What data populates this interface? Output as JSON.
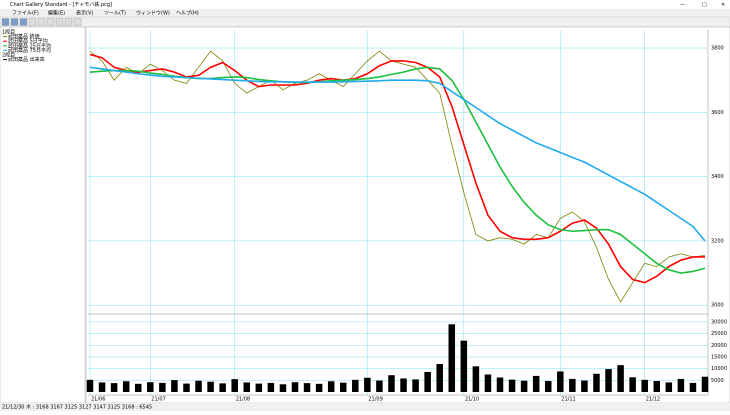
{
  "window": {
    "title": "Chart Gallery Standard - [チャモバ鉄.pcg]",
    "menu": [
      "ファイル(F)",
      "編集(E)",
      "表示(V)",
      "ツール(T)",
      "ウィンドウ(W)",
      "ヘルプ(H)"
    ],
    "legend": [
      "1段目",
      "武田薬品 終値",
      "武田薬品 5日平均",
      "武田薬品 25日平均",
      "武田薬品 75日平均",
      "2段目",
      "武田薬品 出来高"
    ],
    "status": "21/12/30 木 : 3168 3167 3125 3127 3147 3125 3168 : 6545"
  },
  "chart_data": {
    "type": "line",
    "xlim": [
      0,
      51
    ],
    "xticks": [
      {
        "value": 0,
        "label": "21/06"
      },
      {
        "value": 5,
        "label": "21/07"
      },
      {
        "value": 12,
        "label": "21/08"
      },
      {
        "value": 23,
        "label": "21/09"
      },
      {
        "value": 31,
        "label": "21/10"
      },
      {
        "value": 39,
        "label": "21/11"
      },
      {
        "value": 46,
        "label": "21/12"
      }
    ],
    "ylim": [
      2985,
      3825
    ],
    "yticks": [
      3000,
      3200,
      3400,
      3600,
      3800
    ],
    "grid": true,
    "series": [
      {
        "name": "武田薬品 終値",
        "color": "#808000",
        "values": [
          3790,
          3760,
          3700,
          3740,
          3720,
          3750,
          3730,
          3700,
          3690,
          3740,
          3790,
          3760,
          3690,
          3660,
          3680,
          3700,
          3670,
          3690,
          3700,
          3720,
          3700,
          3680,
          3720,
          3760,
          3790,
          3760,
          3750,
          3740,
          3700,
          3660,
          3500,
          3350,
          3220,
          3200,
          3210,
          3205,
          3190,
          3220,
          3210,
          3270,
          3290,
          3260,
          3180,
          3080,
          3010,
          3070,
          3130,
          3120,
          3150,
          3160,
          3150,
          3155
        ]
      },
      {
        "name": "武田薬品 5日平均",
        "color": "#ff0000",
        "values": [
          3780,
          3770,
          3740,
          3730,
          3725,
          3730,
          3735,
          3725,
          3710,
          3715,
          3740,
          3755,
          3730,
          3700,
          3680,
          3685,
          3685,
          3685,
          3690,
          3700,
          3705,
          3700,
          3705,
          3720,
          3745,
          3760,
          3760,
          3755,
          3740,
          3710,
          3620,
          3500,
          3380,
          3280,
          3230,
          3210,
          3205,
          3205,
          3210,
          3230,
          3255,
          3265,
          3240,
          3190,
          3120,
          3080,
          3070,
          3090,
          3120,
          3140,
          3150,
          3150
        ]
      },
      {
        "name": "武田薬品 25日平均",
        "color": "#1fbf3f",
        "values": [
          3725,
          3728,
          3730,
          3730,
          3728,
          3722,
          3718,
          3712,
          3708,
          3705,
          3705,
          3708,
          3710,
          3708,
          3702,
          3698,
          3695,
          3693,
          3693,
          3695,
          3698,
          3700,
          3702,
          3705,
          3710,
          3718,
          3725,
          3735,
          3740,
          3735,
          3700,
          3640,
          3570,
          3500,
          3430,
          3370,
          3320,
          3280,
          3250,
          3235,
          3230,
          3232,
          3235,
          3235,
          3220,
          3190,
          3160,
          3130,
          3110,
          3100,
          3105,
          3115
        ]
      },
      {
        "name": "武田薬品 75日平均",
        "color": "#22aaee",
        "values": [
          3740,
          3735,
          3730,
          3725,
          3720,
          3716,
          3712,
          3710,
          3708,
          3706,
          3704,
          3702,
          3700,
          3698,
          3696,
          3695,
          3695,
          3694,
          3694,
          3694,
          3694,
          3695,
          3696,
          3697,
          3698,
          3700,
          3700,
          3700,
          3698,
          3690,
          3665,
          3640,
          3615,
          3590,
          3565,
          3545,
          3525,
          3505,
          3490,
          3475,
          3460,
          3445,
          3425,
          3405,
          3385,
          3365,
          3345,
          3320,
          3295,
          3270,
          3245,
          3200
        ]
      }
    ],
    "volume": {
      "name": "武田薬品 出来高",
      "color": "#000000",
      "ylim": [
        0,
        31700
      ],
      "yticks": [
        5000,
        10000,
        15000,
        20000,
        25000,
        30000
      ],
      "values": [
        5200,
        4100,
        3800,
        4600,
        3500,
        4200,
        3900,
        5100,
        3600,
        4800,
        4400,
        3700,
        5500,
        4100,
        3600,
        3900,
        3300,
        4200,
        3800,
        3500,
        4600,
        4000,
        5200,
        6100,
        4900,
        7200,
        5800,
        5400,
        8600,
        12000,
        29000,
        22000,
        11000,
        7500,
        6200,
        5300,
        4800,
        6900,
        4700,
        8800,
        5600,
        4900,
        7800,
        9800,
        11500,
        6300,
        5200,
        4700,
        4100,
        5600,
        3900,
        6545
      ]
    }
  }
}
